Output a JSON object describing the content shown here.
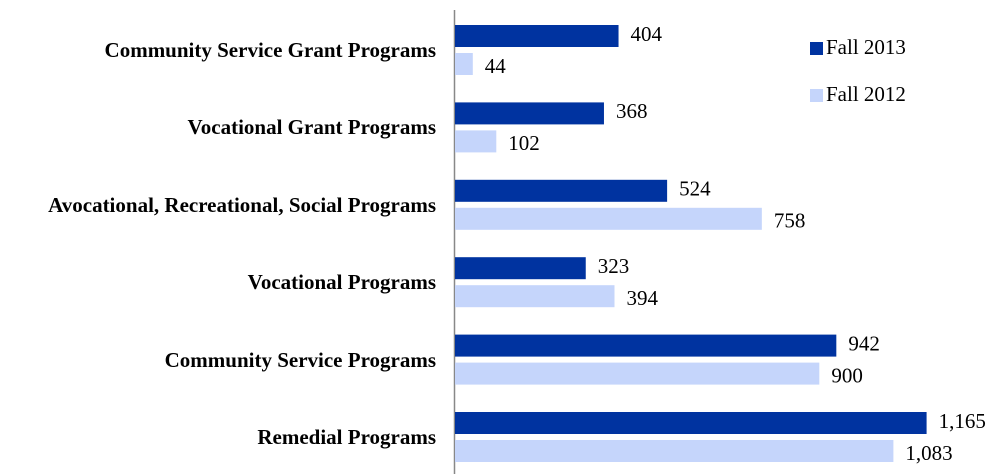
{
  "chart_data": {
    "type": "barh",
    "categories": [
      "Community Service Grant Programs",
      "Vocational Grant Programs",
      "Avocational, Recreational, Social Programs",
      "Vocational Programs",
      "Community Service Programs",
      "Remedial Programs"
    ],
    "series": [
      {
        "name": "Fall 2013",
        "color": "#0033a0",
        "values": [
          404,
          368,
          524,
          323,
          942,
          1165
        ],
        "value_labels": [
          "404",
          "368",
          "524",
          "323",
          "942",
          "1,165"
        ]
      },
      {
        "name": "Fall 2012",
        "color": "#c5d5fb",
        "values": [
          44,
          102,
          758,
          394,
          900,
          1083
        ],
        "value_labels": [
          "44",
          "102",
          "758",
          "394",
          "900",
          "1,083"
        ]
      }
    ],
    "xlim": [
      0,
      1250
    ],
    "legend": "upper right"
  }
}
